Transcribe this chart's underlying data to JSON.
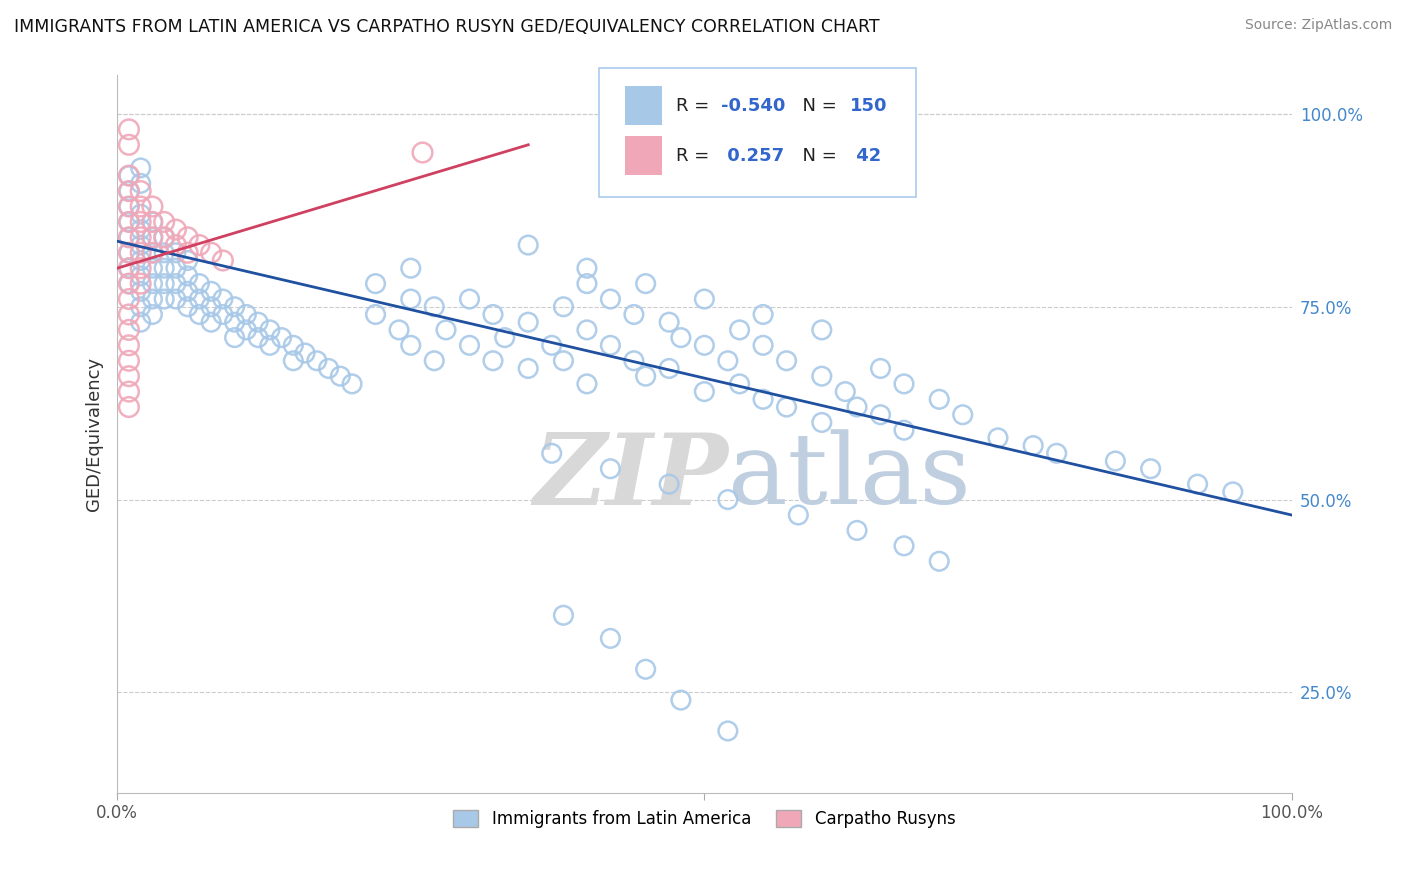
{
  "title": "IMMIGRANTS FROM LATIN AMERICA VS CARPATHO RUSYN GED/EQUIVALENCY CORRELATION CHART",
  "source": "Source: ZipAtlas.com",
  "ylabel": "GED/Equivalency",
  "ytick_labels": [
    "100.0%",
    "75.0%",
    "50.0%",
    "25.0%"
  ],
  "ytick_values": [
    1.0,
    0.75,
    0.5,
    0.25
  ],
  "legend_label1": "Immigrants from Latin America",
  "legend_label2": "Carpatho Rusyns",
  "blue_color": "#a8c8e8",
  "pink_color": "#f0a8b8",
  "blue_line_color": "#2050a0",
  "pink_line_color": "#d04060",
  "watermark_zip": "ZIP",
  "watermark_atlas": "atlas",
  "blue_line_x0": 0.0,
  "blue_line_x1": 1.0,
  "blue_line_y0": 0.835,
  "blue_line_y1": 0.48,
  "pink_line_x0": 0.0,
  "pink_line_x1": 0.35,
  "pink_line_y0": 0.8,
  "pink_line_y1": 0.96,
  "xlim": [
    0.0,
    1.0
  ],
  "ylim": [
    0.12,
    1.05
  ],
  "blue_points_x": [
    0.01,
    0.01,
    0.01,
    0.01,
    0.01,
    0.01,
    0.01,
    0.01,
    0.02,
    0.02,
    0.02,
    0.02,
    0.02,
    0.02,
    0.02,
    0.02,
    0.02,
    0.02,
    0.03,
    0.03,
    0.03,
    0.03,
    0.03,
    0.03,
    0.03,
    0.04,
    0.04,
    0.04,
    0.04,
    0.04,
    0.05,
    0.05,
    0.05,
    0.05,
    0.06,
    0.06,
    0.06,
    0.06,
    0.07,
    0.07,
    0.07,
    0.08,
    0.08,
    0.08,
    0.09,
    0.09,
    0.1,
    0.1,
    0.1,
    0.11,
    0.11,
    0.12,
    0.12,
    0.13,
    0.13,
    0.14,
    0.15,
    0.15,
    0.16,
    0.17,
    0.18,
    0.19,
    0.2,
    0.22,
    0.22,
    0.24,
    0.25,
    0.25,
    0.25,
    0.27,
    0.27,
    0.28,
    0.3,
    0.3,
    0.32,
    0.32,
    0.33,
    0.35,
    0.35,
    0.37,
    0.38,
    0.38,
    0.4,
    0.4,
    0.4,
    0.42,
    0.42,
    0.44,
    0.44,
    0.45,
    0.47,
    0.47,
    0.48,
    0.5,
    0.5,
    0.52,
    0.53,
    0.53,
    0.55,
    0.55,
    0.57,
    0.57,
    0.6,
    0.6,
    0.62,
    0.63,
    0.65,
    0.65,
    0.67,
    0.67,
    0.7,
    0.72,
    0.75,
    0.78,
    0.8,
    0.85,
    0.88,
    0.92,
    0.95,
    0.35,
    0.37,
    0.4,
    0.42,
    0.45,
    0.47,
    0.5,
    0.52,
    0.55,
    0.58,
    0.6,
    0.63,
    0.67,
    0.7,
    0.38,
    0.42,
    0.45,
    0.48,
    0.52
  ],
  "blue_points_y": [
    0.88,
    0.86,
    0.84,
    0.82,
    0.8,
    0.78,
    0.9,
    0.92,
    0.87,
    0.85,
    0.83,
    0.81,
    0.79,
    0.77,
    0.91,
    0.93,
    0.75,
    0.73,
    0.84,
    0.82,
    0.8,
    0.78,
    0.76,
    0.86,
    0.74,
    0.82,
    0.8,
    0.78,
    0.76,
    0.84,
    0.8,
    0.78,
    0.76,
    0.82,
    0.79,
    0.77,
    0.75,
    0.81,
    0.78,
    0.76,
    0.74,
    0.77,
    0.75,
    0.73,
    0.76,
    0.74,
    0.75,
    0.73,
    0.71,
    0.74,
    0.72,
    0.73,
    0.71,
    0.72,
    0.7,
    0.71,
    0.7,
    0.68,
    0.69,
    0.68,
    0.67,
    0.66,
    0.65,
    0.78,
    0.74,
    0.72,
    0.8,
    0.76,
    0.7,
    0.75,
    0.68,
    0.72,
    0.76,
    0.7,
    0.74,
    0.68,
    0.71,
    0.73,
    0.67,
    0.7,
    0.75,
    0.68,
    0.78,
    0.72,
    0.65,
    0.76,
    0.7,
    0.74,
    0.68,
    0.66,
    0.73,
    0.67,
    0.71,
    0.7,
    0.64,
    0.68,
    0.72,
    0.65,
    0.7,
    0.63,
    0.68,
    0.62,
    0.66,
    0.6,
    0.64,
    0.62,
    0.67,
    0.61,
    0.65,
    0.59,
    0.63,
    0.61,
    0.58,
    0.57,
    0.56,
    0.55,
    0.54,
    0.52,
    0.51,
    0.83,
    0.56,
    0.8,
    0.54,
    0.78,
    0.52,
    0.76,
    0.5,
    0.74,
    0.48,
    0.72,
    0.46,
    0.44,
    0.42,
    0.35,
    0.32,
    0.28,
    0.24,
    0.2
  ],
  "pink_points_x": [
    0.01,
    0.01,
    0.01,
    0.01,
    0.01,
    0.01,
    0.01,
    0.01,
    0.01,
    0.01,
    0.01,
    0.01,
    0.01,
    0.01,
    0.01,
    0.01,
    0.01,
    0.01,
    0.02,
    0.02,
    0.02,
    0.02,
    0.02,
    0.02,
    0.02,
    0.03,
    0.03,
    0.03,
    0.03,
    0.04,
    0.04,
    0.05,
    0.05,
    0.06,
    0.06,
    0.07,
    0.08,
    0.09,
    0.26
  ],
  "pink_points_y": [
    0.92,
    0.9,
    0.88,
    0.86,
    0.84,
    0.82,
    0.8,
    0.78,
    0.76,
    0.74,
    0.72,
    0.7,
    0.68,
    0.96,
    0.98,
    0.66,
    0.64,
    0.62,
    0.9,
    0.88,
    0.86,
    0.84,
    0.82,
    0.8,
    0.78,
    0.88,
    0.86,
    0.84,
    0.82,
    0.86,
    0.84,
    0.85,
    0.83,
    0.84,
    0.82,
    0.83,
    0.82,
    0.81,
    0.95
  ]
}
